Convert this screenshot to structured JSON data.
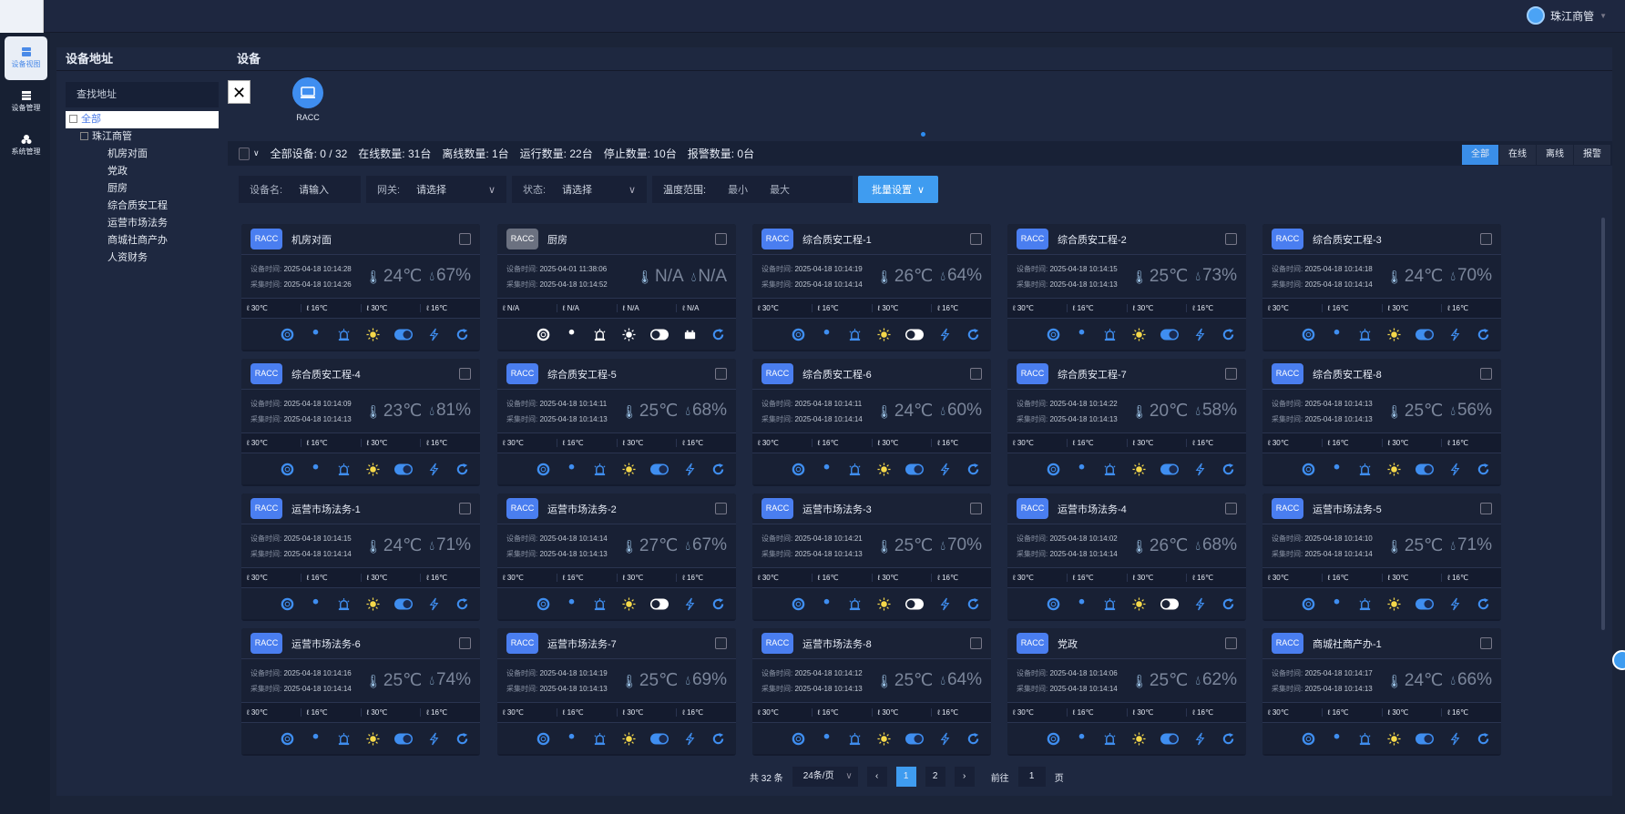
{
  "topbar": {
    "user": "珠江商管"
  },
  "nav": [
    {
      "label": "设备视图",
      "icon": "device-view-icon"
    },
    {
      "label": "设备管理",
      "icon": "device-manage-icon"
    },
    {
      "label": "系统管理",
      "icon": "system-icon"
    }
  ],
  "address": {
    "title": "设备地址",
    "search_placeholder": "查找地址",
    "tree": {
      "root": "全部",
      "group": "珠江商管",
      "children": [
        "机房对面",
        "党政",
        "厨房",
        "综合质安工程",
        "运营市场法务",
        "商城社商产办",
        "人资财务"
      ]
    }
  },
  "main": {
    "title": "设备",
    "device_type": "RACC",
    "stats": {
      "all": "全部设备: 0 / 32",
      "online": "在线数量: 31台",
      "offline": "离线数量: 1台",
      "running": "运行数量: 22台",
      "stopped": "停止数量: 10台",
      "alarm": "报警数量: 0台"
    },
    "tabs": [
      "全部",
      "在线",
      "离线",
      "报警"
    ],
    "active_tab": "全部",
    "filters": {
      "name_label": "设备名:",
      "name_placeholder": "请输入",
      "gateway_label": "网关:",
      "gateway_placeholder": "请选择",
      "status_label": "状态:",
      "status_placeholder": "请选择",
      "temp_label": "温度范围:",
      "min": "最小",
      "max": "最大",
      "batch": "批量设置"
    },
    "card_labels": {
      "device_time": "设备时间:",
      "collect_time": "采集时间:"
    },
    "colors": {
      "accent": "#3f9cf0",
      "badge_online": "#4a7ef0",
      "badge_offline": "#6b7180",
      "sun": "#f5d84a"
    }
  },
  "cards": [
    {
      "type": "RACC",
      "name": "机房对面",
      "device_time": "2025-04-18 10:14:28",
      "collect_time": "2025-04-18 10:14:26",
      "temp": "24℃",
      "hum": "67%",
      "limits": [
        "30℃",
        "16℃",
        "30℃",
        "16℃"
      ],
      "online": true,
      "switch_on": true
    },
    {
      "type": "RACC",
      "name": "厨房",
      "device_time": "2025-04-01 11:38:06",
      "collect_time": "2025-04-18 10:14:52",
      "temp": "N/A",
      "hum": "N/A",
      "limits": [
        "N/A",
        "N/A",
        "N/A",
        "N/A"
      ],
      "online": false,
      "switch_on": false
    },
    {
      "type": "RACC",
      "name": "综合质安工程-1",
      "device_time": "2025-04-18 10:14:19",
      "collect_time": "2025-04-18 10:14:14",
      "temp": "26℃",
      "hum": "64%",
      "limits": [
        "30℃",
        "16℃",
        "30℃",
        "16℃"
      ],
      "online": true,
      "switch_on": false
    },
    {
      "type": "RACC",
      "name": "综合质安工程-2",
      "device_time": "2025-04-18 10:14:15",
      "collect_time": "2025-04-18 10:14:13",
      "temp": "25℃",
      "hum": "73%",
      "limits": [
        "30℃",
        "16℃",
        "30℃",
        "16℃"
      ],
      "online": true,
      "switch_on": true
    },
    {
      "type": "RACC",
      "name": "综合质安工程-3",
      "device_time": "2025-04-18 10:14:18",
      "collect_time": "2025-04-18 10:14:14",
      "temp": "24℃",
      "hum": "70%",
      "limits": [
        "30℃",
        "16℃",
        "30℃",
        "16℃"
      ],
      "online": true,
      "switch_on": true
    },
    {
      "type": "RACC",
      "name": "综合质安工程-4",
      "device_time": "2025-04-18 10:14:09",
      "collect_time": "2025-04-18 10:14:13",
      "temp": "23℃",
      "hum": "81%",
      "limits": [
        "30℃",
        "16℃",
        "30℃",
        "16℃"
      ],
      "online": true,
      "switch_on": true
    },
    {
      "type": "RACC",
      "name": "综合质安工程-5",
      "device_time": "2025-04-18 10:14:11",
      "collect_time": "2025-04-18 10:14:13",
      "temp": "25℃",
      "hum": "68%",
      "limits": [
        "30℃",
        "16℃",
        "30℃",
        "16℃"
      ],
      "online": true,
      "switch_on": true
    },
    {
      "type": "RACC",
      "name": "综合质安工程-6",
      "device_time": "2025-04-18 10:14:11",
      "collect_time": "2025-04-18 10:14:14",
      "temp": "24℃",
      "hum": "60%",
      "limits": [
        "30℃",
        "16℃",
        "30℃",
        "16℃"
      ],
      "online": true,
      "switch_on": true
    },
    {
      "type": "RACC",
      "name": "综合质安工程-7",
      "device_time": "2025-04-18 10:14:22",
      "collect_time": "2025-04-18 10:14:13",
      "temp": "20℃",
      "hum": "58%",
      "limits": [
        "30℃",
        "16℃",
        "30℃",
        "16℃"
      ],
      "online": true,
      "switch_on": true
    },
    {
      "type": "RACC",
      "name": "综合质安工程-8",
      "device_time": "2025-04-18 10:14:13",
      "collect_time": "2025-04-18 10:14:13",
      "temp": "25℃",
      "hum": "56%",
      "limits": [
        "30℃",
        "16℃",
        "30℃",
        "16℃"
      ],
      "online": true,
      "switch_on": true
    },
    {
      "type": "RACC",
      "name": "运营市场法务-1",
      "device_time": "2025-04-18 10:14:15",
      "collect_time": "2025-04-18 10:14:14",
      "temp": "24℃",
      "hum": "71%",
      "limits": [
        "30℃",
        "16℃",
        "30℃",
        "16℃"
      ],
      "online": true,
      "switch_on": true
    },
    {
      "type": "RACC",
      "name": "运营市场法务-2",
      "device_time": "2025-04-18 10:14:14",
      "collect_time": "2025-04-18 10:14:13",
      "temp": "27℃",
      "hum": "67%",
      "limits": [
        "30℃",
        "16℃",
        "30℃",
        "16℃"
      ],
      "online": true,
      "switch_on": false
    },
    {
      "type": "RACC",
      "name": "运营市场法务-3",
      "device_time": "2025-04-18 10:14:21",
      "collect_time": "2025-04-18 10:14:13",
      "temp": "25℃",
      "hum": "70%",
      "limits": [
        "30℃",
        "16℃",
        "30℃",
        "16℃"
      ],
      "online": true,
      "switch_on": false
    },
    {
      "type": "RACC",
      "name": "运营市场法务-4",
      "device_time": "2025-04-18 10:14:02",
      "collect_time": "2025-04-18 10:14:14",
      "temp": "26℃",
      "hum": "68%",
      "limits": [
        "30℃",
        "16℃",
        "30℃",
        "16℃"
      ],
      "online": true,
      "switch_on": false
    },
    {
      "type": "RACC",
      "name": "运营市场法务-5",
      "device_time": "2025-04-18 10:14:10",
      "collect_time": "2025-04-18 10:14:14",
      "temp": "25℃",
      "hum": "71%",
      "limits": [
        "30℃",
        "16℃",
        "30℃",
        "16℃"
      ],
      "online": true,
      "switch_on": true
    },
    {
      "type": "RACC",
      "name": "运营市场法务-6",
      "device_time": "2025-04-18 10:14:16",
      "collect_time": "2025-04-18 10:14:14",
      "temp": "25℃",
      "hum": "74%",
      "limits": [
        "30℃",
        "16℃",
        "30℃",
        "16℃"
      ],
      "online": true,
      "switch_on": true
    },
    {
      "type": "RACC",
      "name": "运营市场法务-7",
      "device_time": "2025-04-18 10:14:19",
      "collect_time": "2025-04-18 10:14:13",
      "temp": "25℃",
      "hum": "69%",
      "limits": [
        "30℃",
        "16℃",
        "30℃",
        "16℃"
      ],
      "online": true,
      "switch_on": true
    },
    {
      "type": "RACC",
      "name": "运营市场法务-8",
      "device_time": "2025-04-18 10:14:12",
      "collect_time": "2025-04-18 10:14:13",
      "temp": "25℃",
      "hum": "64%",
      "limits": [
        "30℃",
        "16℃",
        "30℃",
        "16℃"
      ],
      "online": true,
      "switch_on": true
    },
    {
      "type": "RACC",
      "name": "党政",
      "device_time": "2025-04-18 10:14:06",
      "collect_time": "2025-04-18 10:14:14",
      "temp": "25℃",
      "hum": "62%",
      "limits": [
        "30℃",
        "16℃",
        "30℃",
        "16℃"
      ],
      "online": true,
      "switch_on": true
    },
    {
      "type": "RACC",
      "name": "商城社商产办-1",
      "device_time": "2025-04-18 10:14:17",
      "collect_time": "2025-04-18 10:14:13",
      "temp": "24℃",
      "hum": "66%",
      "limits": [
        "30℃",
        "16℃",
        "30℃",
        "16℃"
      ],
      "online": true,
      "switch_on": true
    }
  ],
  "pagination": {
    "total": "共 32 条",
    "page_size": "24条/页",
    "pages": [
      "1",
      "2"
    ],
    "current": "1",
    "goto_label": "前往",
    "goto_value": "1",
    "page_suffix": "页",
    "prev": "‹",
    "next": "›"
  }
}
